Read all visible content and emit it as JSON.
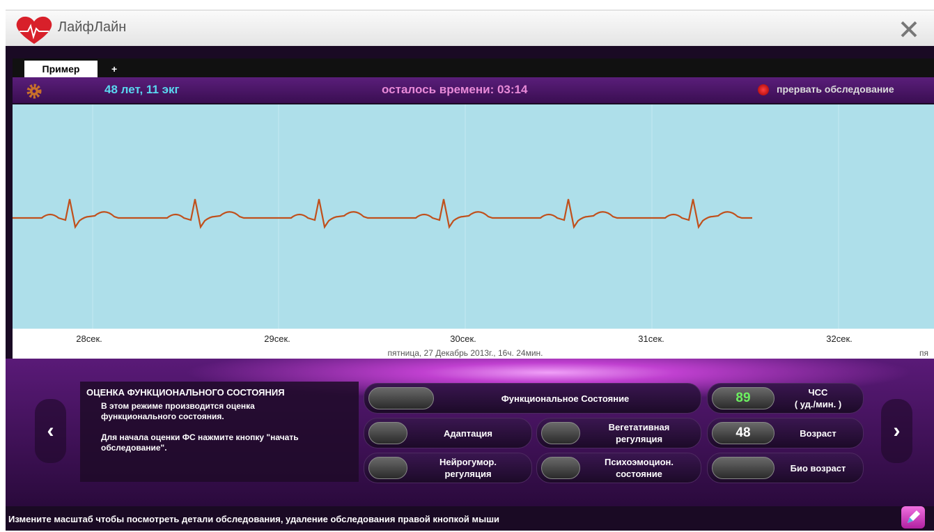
{
  "window": {
    "title": "ЛайфЛайн"
  },
  "tabs": [
    "Пример",
    "+"
  ],
  "info_bar": {
    "patient": "48 лет, 11 экг",
    "timer": "осталось времени: 03:14",
    "stop": "прервать обследование"
  },
  "ecg": {
    "time_labels": [
      "28сек.",
      "29сек.",
      "30сек.",
      "31сек.",
      "32сек."
    ],
    "date": "пятница, 27 Декабрь 2013г., 16ч. 24мин.",
    "date_clipped": "пя"
  },
  "panel": {
    "title": "ОЦЕНКА ФУНКЦИОНАЛЬНОГО СОСТОЯНИЯ",
    "paragraphs": [
      [
        "В этом режиме производится оценка",
        "функционального состояния."
      ],
      [
        "Для начала оценки ФС нажмите кнопку \"начать",
        "обследование\"."
      ]
    ]
  },
  "buttons": [
    [
      "Функциональное Состояние"
    ],
    [
      "Адаптация"
    ],
    [
      "Вегетативная",
      "регуляция"
    ],
    [
      "Нейрогумор.",
      "регуляция"
    ],
    [
      "Психоэмоцион.",
      "состояние"
    ]
  ],
  "indicators": [
    {
      "value": 89,
      "label": [
        "ЧСС",
        "( уд./мин. )"
      ]
    },
    {
      "value": 48,
      "label": [
        "Возраст"
      ]
    },
    {
      "label": [
        "Био возраст"
      ]
    }
  ],
  "status": "Измените масштаб чтобы посмотреть детали обследования, удаление обследования правой кнопкой мыши"
}
